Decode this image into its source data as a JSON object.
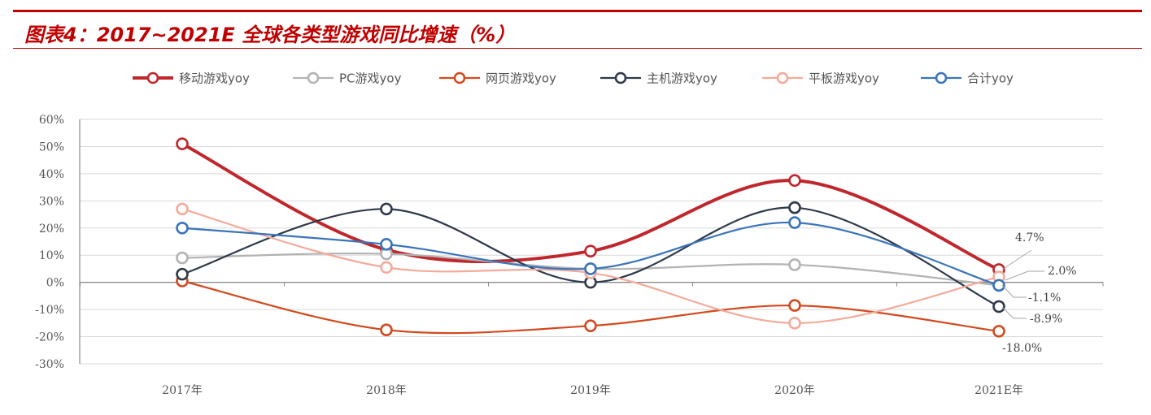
{
  "header": {
    "title": "图表4：2017~2021E 全球各类型游戏同比增速（%）",
    "accent_color": "#c00000"
  },
  "chart_data": {
    "type": "line",
    "title": "",
    "xlabel": "",
    "ylabel": "",
    "categories": [
      "2017年",
      "2018年",
      "2019年",
      "2020年",
      "2021E年"
    ],
    "y_ticks": [
      "60%",
      "50%",
      "40%",
      "30%",
      "20%",
      "10%",
      "0%",
      "-10%",
      "-20%",
      "-30%"
    ],
    "ylim": [
      -30,
      60
    ],
    "grid": true,
    "legend_position": "top",
    "series": [
      {
        "name": "移动游戏yoy",
        "color": "#c0272d",
        "values": [
          51,
          12,
          11.5,
          37.5,
          4.7
        ]
      },
      {
        "name": "PC游戏yoy",
        "color": "#b3b3b3",
        "values": [
          9,
          10.5,
          5,
          6.5,
          -1.1
        ]
      },
      {
        "name": "网页游戏yoy",
        "color": "#d24a1e",
        "values": [
          0.5,
          -17.5,
          -16,
          -8.5,
          -18.0
        ]
      },
      {
        "name": "主机游戏yoy",
        "color": "#2e3a4a",
        "values": [
          3,
          27,
          0,
          27.5,
          -8.9
        ]
      },
      {
        "name": "平板游戏yoy",
        "color": "#f4aa9a",
        "values": [
          27,
          5.5,
          3.5,
          -15,
          2.0
        ]
      },
      {
        "name": "合计yoy",
        "color": "#3a74ba",
        "values": [
          20,
          14,
          5,
          22,
          -1.1
        ]
      }
    ],
    "data_labels": [
      "4.7%",
      "2.0%",
      "-1.1%",
      "-8.9%",
      "-18.0%"
    ]
  }
}
